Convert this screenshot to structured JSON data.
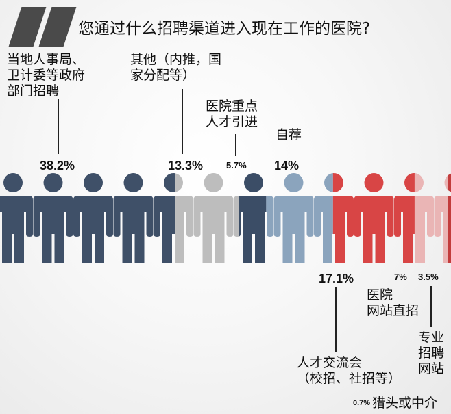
{
  "title": "您通过什么招聘渠道进入现在工作的医院?",
  "chart_data": {
    "type": "pictogram",
    "title": "您通过什么招聘渠道进入现在工作的医院?",
    "categories": [
      {
        "name": "当地人事局、卫计委等政府部门招聘",
        "lines": [
          "当地人事局、",
          "卫计委等政府",
          "部门招聘"
        ],
        "value": 38.2,
        "label": "38.2%",
        "color": "#3f5068"
      },
      {
        "name": "其他（内推，国家分配等）",
        "lines": [
          "其他（内推，国",
          "家分配等）"
        ],
        "value": 13.3,
        "label": "13.3%",
        "color": "#bdbdbd"
      },
      {
        "name": "医院重点人才引进",
        "lines": [
          "医院重点",
          "人才引进"
        ],
        "value": 5.7,
        "label": "5.7%",
        "color": "#3b4d66"
      },
      {
        "name": "自荐",
        "lines": [
          "自荐"
        ],
        "value": 14,
        "label": "14%",
        "color": "#8ba4bd"
      },
      {
        "name": "人才交流会（校招、社招等）",
        "lines": [
          "人才交流会",
          "（校招、社招等）"
        ],
        "value": 17.1,
        "label": "17.1%",
        "color": "#d84545"
      },
      {
        "name": "医院网站直招",
        "lines": [
          "医院",
          "网站直招"
        ],
        "value": 7,
        "label": "7%",
        "color": "#eab5b5"
      },
      {
        "name": "专业招聘网站",
        "lines": [
          "专业",
          "招聘",
          "网站"
        ],
        "value": 3.5,
        "label": "3.5%",
        "color": "#c23c3c"
      },
      {
        "name": "猎头或中介",
        "lines": [
          "猎头或中介"
        ],
        "value": 0.7,
        "label": "0.7%",
        "color": "#e6a13a"
      }
    ]
  }
}
